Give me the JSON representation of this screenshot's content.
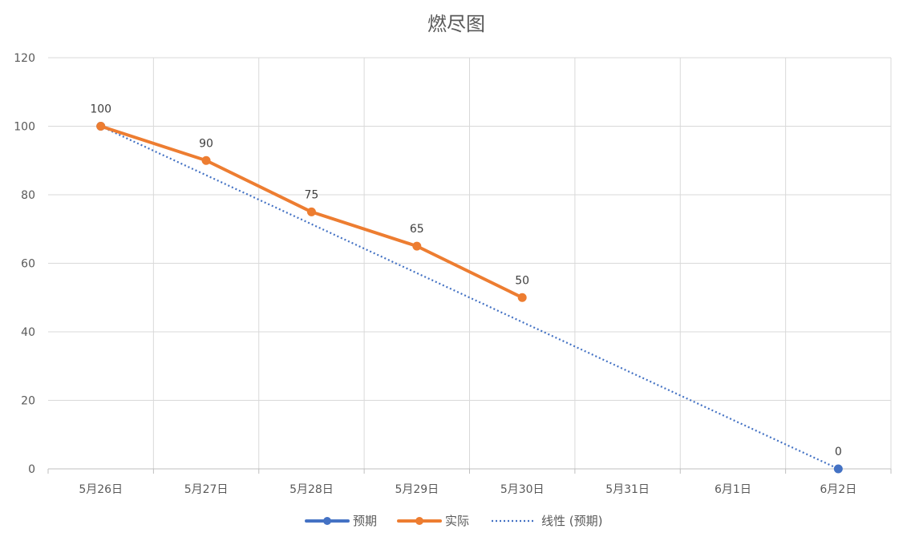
{
  "chart_data": {
    "type": "line",
    "title": "燃尽图",
    "xlabel": "",
    "ylabel": "",
    "categories": [
      "5月26日",
      "5月27日",
      "5月28日",
      "5月29日",
      "5月30日",
      "5月31日",
      "6月1日",
      "6月2日"
    ],
    "ylim": [
      0,
      120
    ],
    "yticks": [
      0,
      20,
      40,
      60,
      80,
      100,
      120
    ],
    "grid": true,
    "legend_position": "bottom",
    "series": [
      {
        "name": "预期",
        "values": [
          100,
          null,
          null,
          null,
          null,
          null,
          null,
          0
        ],
        "color": "#4472C4",
        "style": "line-marker",
        "data_labels": [
          null,
          null,
          null,
          null,
          null,
          null,
          null,
          "0"
        ]
      },
      {
        "name": "实际",
        "values": [
          100,
          90,
          75,
          65,
          50,
          null,
          null,
          null
        ],
        "color": "#ED7D31",
        "style": "line-marker",
        "data_labels": [
          "100",
          "90",
          "75",
          "65",
          "50",
          null,
          null,
          null
        ]
      },
      {
        "name": "线性 (预期)",
        "values": [
          100,
          null,
          null,
          null,
          null,
          null,
          null,
          0
        ],
        "color": "#4472C4",
        "style": "dotted-trendline"
      }
    ]
  }
}
